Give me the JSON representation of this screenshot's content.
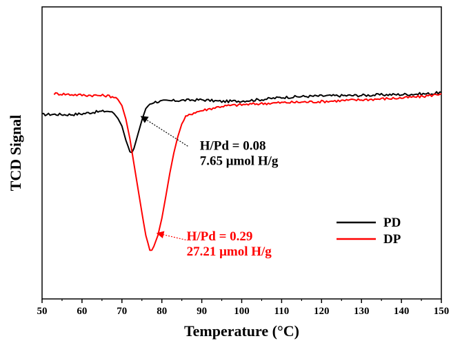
{
  "chart_data": {
    "type": "line",
    "title": "",
    "xlabel": "Temperature (°C)",
    "ylabel": "TCD Signal",
    "xlim": [
      50,
      150
    ],
    "ylim": [
      0,
      100
    ],
    "x_ticks": [
      "50",
      "60",
      "70",
      "80",
      "90",
      "100",
      "110",
      "120",
      "130",
      "140",
      "150"
    ],
    "y_ticks_shown": false,
    "legend_position": "right",
    "series": [
      {
        "name": "PD",
        "color": "#000000",
        "points": [
          [
            50,
            63.1
          ],
          [
            52,
            63.2
          ],
          [
            54,
            63.2
          ],
          [
            56,
            63.1
          ],
          [
            58,
            63.2
          ],
          [
            60,
            63.4
          ],
          [
            62,
            63.8
          ],
          [
            64,
            64.1
          ],
          [
            66,
            64.3
          ],
          [
            67,
            64.2
          ],
          [
            68,
            63.5
          ],
          [
            69,
            61.8
          ],
          [
            70,
            59.2
          ],
          [
            71,
            54.3
          ],
          [
            72,
            50.5
          ],
          [
            72.5,
            50.1
          ],
          [
            73,
            51.5
          ],
          [
            74,
            56.4
          ],
          [
            75,
            61.2
          ],
          [
            76,
            65.2
          ],
          [
            77,
            66.8
          ],
          [
            78,
            67.4
          ],
          [
            80,
            67.7
          ],
          [
            85,
            68.0
          ],
          [
            90,
            68.2
          ],
          [
            95,
            67.6
          ],
          [
            100,
            67.8
          ],
          [
            105,
            68.3
          ],
          [
            110,
            69.0
          ],
          [
            115,
            69.3
          ],
          [
            120,
            69.5
          ],
          [
            125,
            69.6
          ],
          [
            130,
            69.7
          ],
          [
            135,
            69.9
          ],
          [
            140,
            70.0
          ],
          [
            145,
            70.2
          ],
          [
            148,
            70.3
          ],
          [
            150,
            70.8
          ]
        ]
      },
      {
        "name": "DP",
        "color": "#ff0000",
        "points": [
          [
            53,
            70.3
          ],
          [
            55,
            70.2
          ],
          [
            57,
            70.0
          ],
          [
            60,
            69.8
          ],
          [
            63,
            69.7
          ],
          [
            66,
            69.6
          ],
          [
            68,
            69.2
          ],
          [
            69,
            68.3
          ],
          [
            70,
            66.2
          ],
          [
            71,
            61.5
          ],
          [
            72,
            54.8
          ],
          [
            73,
            46.3
          ],
          [
            74,
            37.9
          ],
          [
            75,
            29.5
          ],
          [
            76,
            21.7
          ],
          [
            77,
            16.8
          ],
          [
            77.5,
            16.7
          ],
          [
            78,
            18.0
          ],
          [
            79,
            21.7
          ],
          [
            80,
            27.6
          ],
          [
            81,
            35.2
          ],
          [
            82,
            43.1
          ],
          [
            83,
            50.0
          ],
          [
            84,
            55.6
          ],
          [
            85,
            59.9
          ],
          [
            86,
            62.3
          ],
          [
            88,
            63.8
          ],
          [
            90,
            64.5
          ],
          [
            92,
            65.1
          ],
          [
            95,
            66.0
          ],
          [
            100,
            66.5
          ],
          [
            105,
            66.9
          ],
          [
            110,
            67.2
          ],
          [
            115,
            67.4
          ],
          [
            120,
            67.6
          ],
          [
            125,
            67.9
          ],
          [
            130,
            68.2
          ],
          [
            135,
            68.5
          ],
          [
            140,
            68.8
          ],
          [
            145,
            69.3
          ],
          [
            148,
            69.8
          ],
          [
            150,
            70.3
          ]
        ]
      }
    ],
    "annotations": [
      {
        "lines": [
          "H/Pd = 0.08",
          "7.65 μmol H/g"
        ],
        "color": "#000000",
        "text_x": 89.5,
        "text_y": 52.5,
        "arrow_from": [
          86.5,
          52.3
        ],
        "arrow_to": [
          74.8,
          62.5
        ]
      },
      {
        "lines": [
          "H/Pd = 0.29",
          "27.21 μmol H/g"
        ],
        "color": "#ff0000",
        "text_x": 86.2,
        "text_y": 21.5,
        "arrow_from": [
          86.0,
          20.2
        ],
        "arrow_to": [
          78.8,
          22.5
        ]
      }
    ]
  }
}
